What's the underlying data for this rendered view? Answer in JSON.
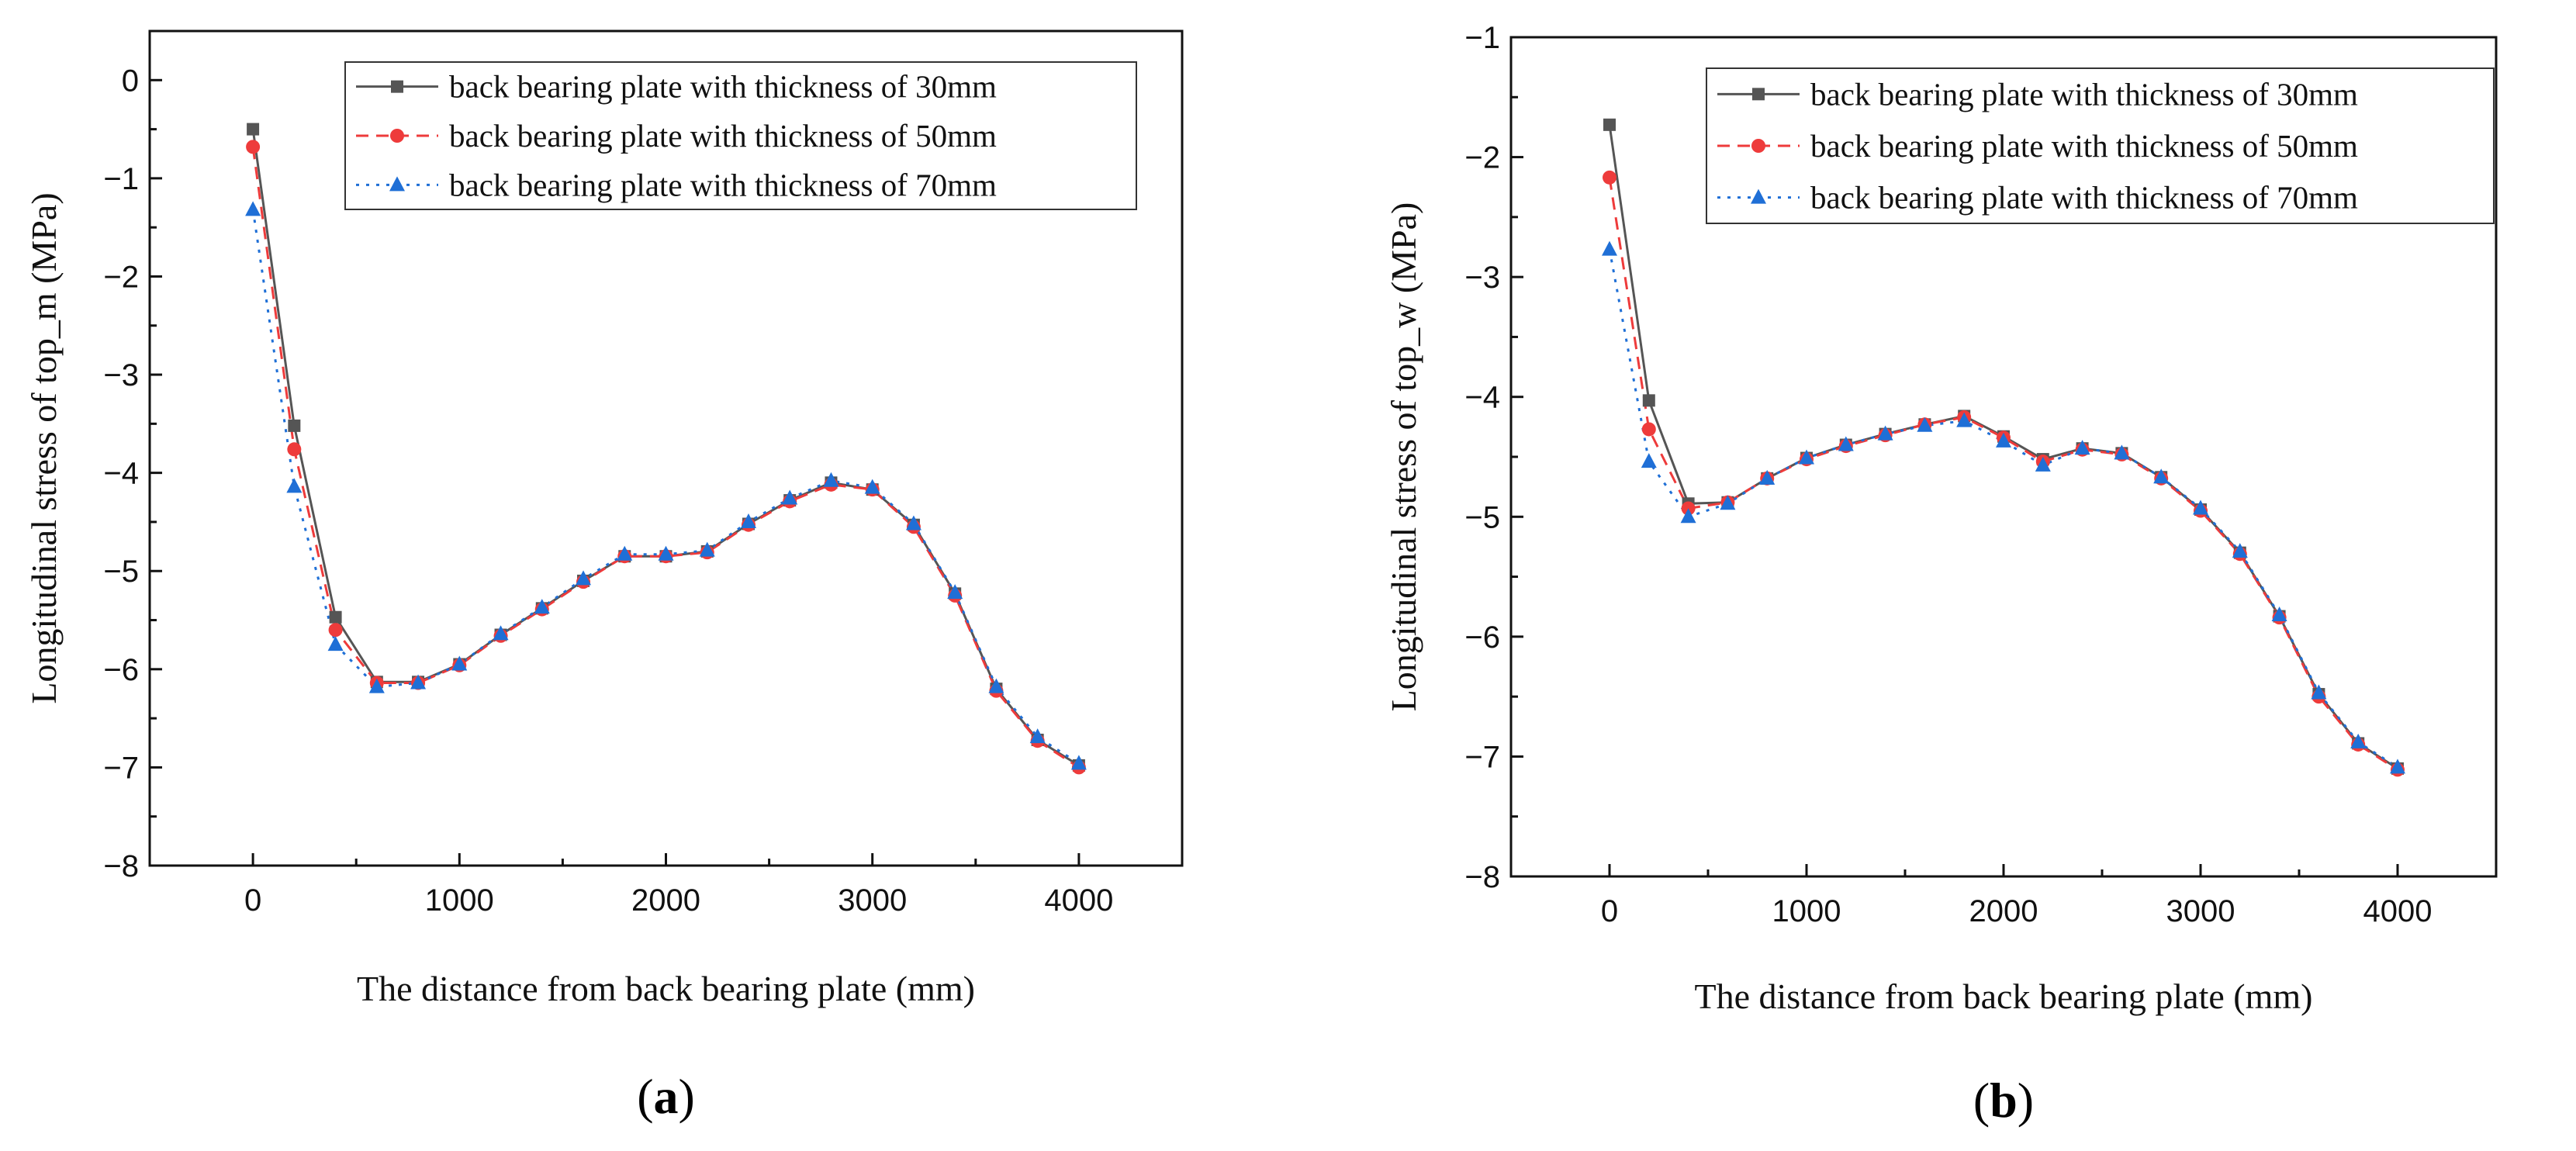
{
  "chart_data": [
    {
      "type": "line",
      "panel_label_open": "(",
      "panel_label_letter": "a",
      "panel_label_close": ")",
      "xlabel": "The distance from back bearing plate (mm)",
      "ylabel": "Longitudinal stress of top_m (MPa)",
      "xlim": [
        -500,
        4500
      ],
      "ylim": [
        -8,
        0.5
      ],
      "xticks": [
        0,
        1000,
        2000,
        3000,
        4000
      ],
      "xtick_labels": [
        "0",
        "1000",
        "2000",
        "3000",
        "4000"
      ],
      "yticks": [
        0,
        -1,
        -2,
        -3,
        -4,
        -5,
        -6,
        -7,
        -8
      ],
      "ytick_labels": [
        "0",
        "−1",
        "−2",
        "−3",
        "−4",
        "−5",
        "−6",
        "−7",
        "−8"
      ],
      "grid": false,
      "legend_position": "top-right",
      "x": [
        0,
        200,
        400,
        600,
        800,
        1000,
        1200,
        1400,
        1600,
        1800,
        2000,
        2200,
        2400,
        2600,
        2800,
        3000,
        3200,
        3400,
        3600,
        3800,
        4000
      ],
      "series": [
        {
          "name": "back bearing plate with thickness of 30mm",
          "color": "#555555",
          "marker": "square",
          "dash": "solid",
          "values": [
            -0.5,
            -3.52,
            -5.47,
            -6.13,
            -6.13,
            -5.95,
            -5.65,
            -5.38,
            -5.1,
            -4.85,
            -4.85,
            -4.8,
            -4.52,
            -4.28,
            -4.1,
            -4.17,
            -4.53,
            -5.23,
            -6.2,
            -6.72,
            -6.98
          ]
        },
        {
          "name": "back bearing plate with thickness of 50mm",
          "color": "#ee3b3b",
          "marker": "circle",
          "dash": "dashed",
          "values": [
            -0.68,
            -3.76,
            -5.6,
            -6.14,
            -6.14,
            -5.96,
            -5.66,
            -5.39,
            -5.11,
            -4.85,
            -4.85,
            -4.81,
            -4.53,
            -4.29,
            -4.12,
            -4.17,
            -4.55,
            -5.25,
            -6.22,
            -6.73,
            -7.0
          ]
        },
        {
          "name": "back bearing plate with thickness of 70mm",
          "color": "#1f6fd6",
          "marker": "triangle",
          "dash": "dotted",
          "values": [
            -1.32,
            -4.14,
            -5.75,
            -6.18,
            -6.14,
            -5.95,
            -5.64,
            -5.37,
            -5.08,
            -4.83,
            -4.83,
            -4.79,
            -4.5,
            -4.26,
            -4.08,
            -4.15,
            -4.52,
            -5.22,
            -6.18,
            -6.69,
            -6.96
          ]
        }
      ]
    },
    {
      "type": "line",
      "panel_label_open": "(",
      "panel_label_letter": "b",
      "panel_label_close": ")",
      "xlabel": "The distance from back bearing plate (mm)",
      "ylabel": "Longitudinal stress of top_w (MPa)",
      "xlim": [
        -500,
        4500
      ],
      "ylim": [
        -8,
        -1
      ],
      "xticks": [
        0,
        1000,
        2000,
        3000,
        4000
      ],
      "xtick_labels": [
        "0",
        "1000",
        "2000",
        "3000",
        "4000"
      ],
      "yticks": [
        -1,
        -2,
        -3,
        -4,
        -5,
        -6,
        -7,
        -8
      ],
      "ytick_labels": [
        "−1",
        "−2",
        "−3",
        "−4",
        "−5",
        "−6",
        "−7",
        "−8"
      ],
      "grid": false,
      "legend_position": "top-right",
      "x": [
        0,
        200,
        400,
        600,
        800,
        1000,
        1200,
        1400,
        1600,
        1800,
        2000,
        2200,
        2400,
        2600,
        2800,
        3000,
        3200,
        3400,
        3600,
        3800,
        4000
      ],
      "series": [
        {
          "name": "back bearing plate with thickness of 30mm",
          "color": "#555555",
          "marker": "square",
          "dash": "solid",
          "values": [
            -1.73,
            -4.03,
            -4.89,
            -4.88,
            -4.68,
            -4.51,
            -4.4,
            -4.31,
            -4.23,
            -4.16,
            -4.33,
            -4.52,
            -4.43,
            -4.47,
            -4.67,
            -4.94,
            -5.3,
            -5.83,
            -6.48,
            -6.89,
            -7.1
          ]
        },
        {
          "name": "back bearing plate with thickness of 50mm",
          "color": "#ee3b3b",
          "marker": "circle",
          "dash": "dashed",
          "values": [
            -2.17,
            -4.27,
            -4.93,
            -4.88,
            -4.68,
            -4.52,
            -4.41,
            -4.32,
            -4.23,
            -4.17,
            -4.34,
            -4.54,
            -4.44,
            -4.48,
            -4.68,
            -4.95,
            -5.31,
            -5.84,
            -6.5,
            -6.9,
            -7.11
          ]
        },
        {
          "name": "back bearing plate with thickness of 70mm",
          "color": "#1f6fd6",
          "marker": "triangle",
          "dash": "dotted",
          "values": [
            -2.77,
            -4.54,
            -5.0,
            -4.89,
            -4.68,
            -4.51,
            -4.4,
            -4.31,
            -4.24,
            -4.2,
            -4.37,
            -4.57,
            -4.43,
            -4.47,
            -4.67,
            -4.93,
            -5.29,
            -5.82,
            -6.47,
            -6.88,
            -7.09
          ]
        }
      ]
    }
  ]
}
